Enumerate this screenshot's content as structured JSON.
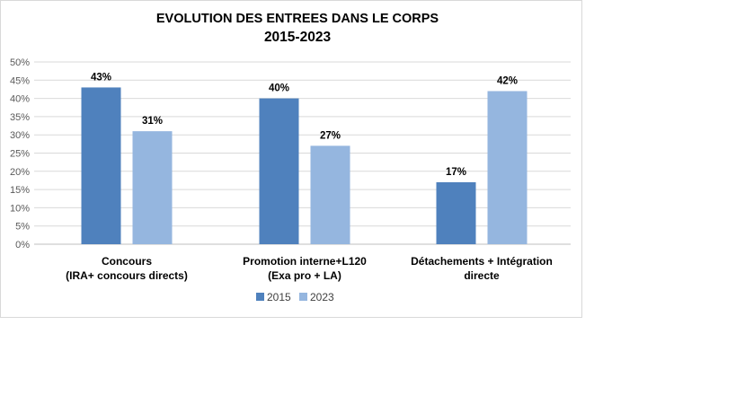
{
  "colors": {
    "series_2015": "#4f81bd",
    "series_2023": "#95b6df",
    "gridline": "#d9d9d9",
    "axis": "#bfbfbf",
    "border": "#d9d9d9"
  },
  "chart_data": {
    "type": "bar",
    "title": [
      "EVOLUTION DES ENTREES DANS LE CORPS",
      "2015-2023"
    ],
    "categories": [
      [
        "Concours",
        "(IRA+ concours directs)"
      ],
      [
        "Promotion interne+L120",
        "(Exa pro + LA)"
      ],
      [
        "Détachements + Intégration",
        "directe"
      ]
    ],
    "series": [
      {
        "name": "2015",
        "values": [
          43,
          40,
          17
        ],
        "labels": [
          "43%",
          "40%",
          "17%"
        ]
      },
      {
        "name": "2023",
        "values": [
          31,
          27,
          42
        ],
        "labels": [
          "31%",
          "27%",
          "42%"
        ]
      }
    ],
    "ylim": [
      0,
      50
    ],
    "y_ticks": [
      0,
      5,
      10,
      15,
      20,
      25,
      30,
      35,
      40,
      45,
      50
    ],
    "y_tick_labels": [
      "0%",
      "5%",
      "10%",
      "15%",
      "20%",
      "25%",
      "30%",
      "35%",
      "40%",
      "45%",
      "50%"
    ],
    "xlabel": "",
    "ylabel": "",
    "grid": true,
    "legend": "bottom-center"
  }
}
